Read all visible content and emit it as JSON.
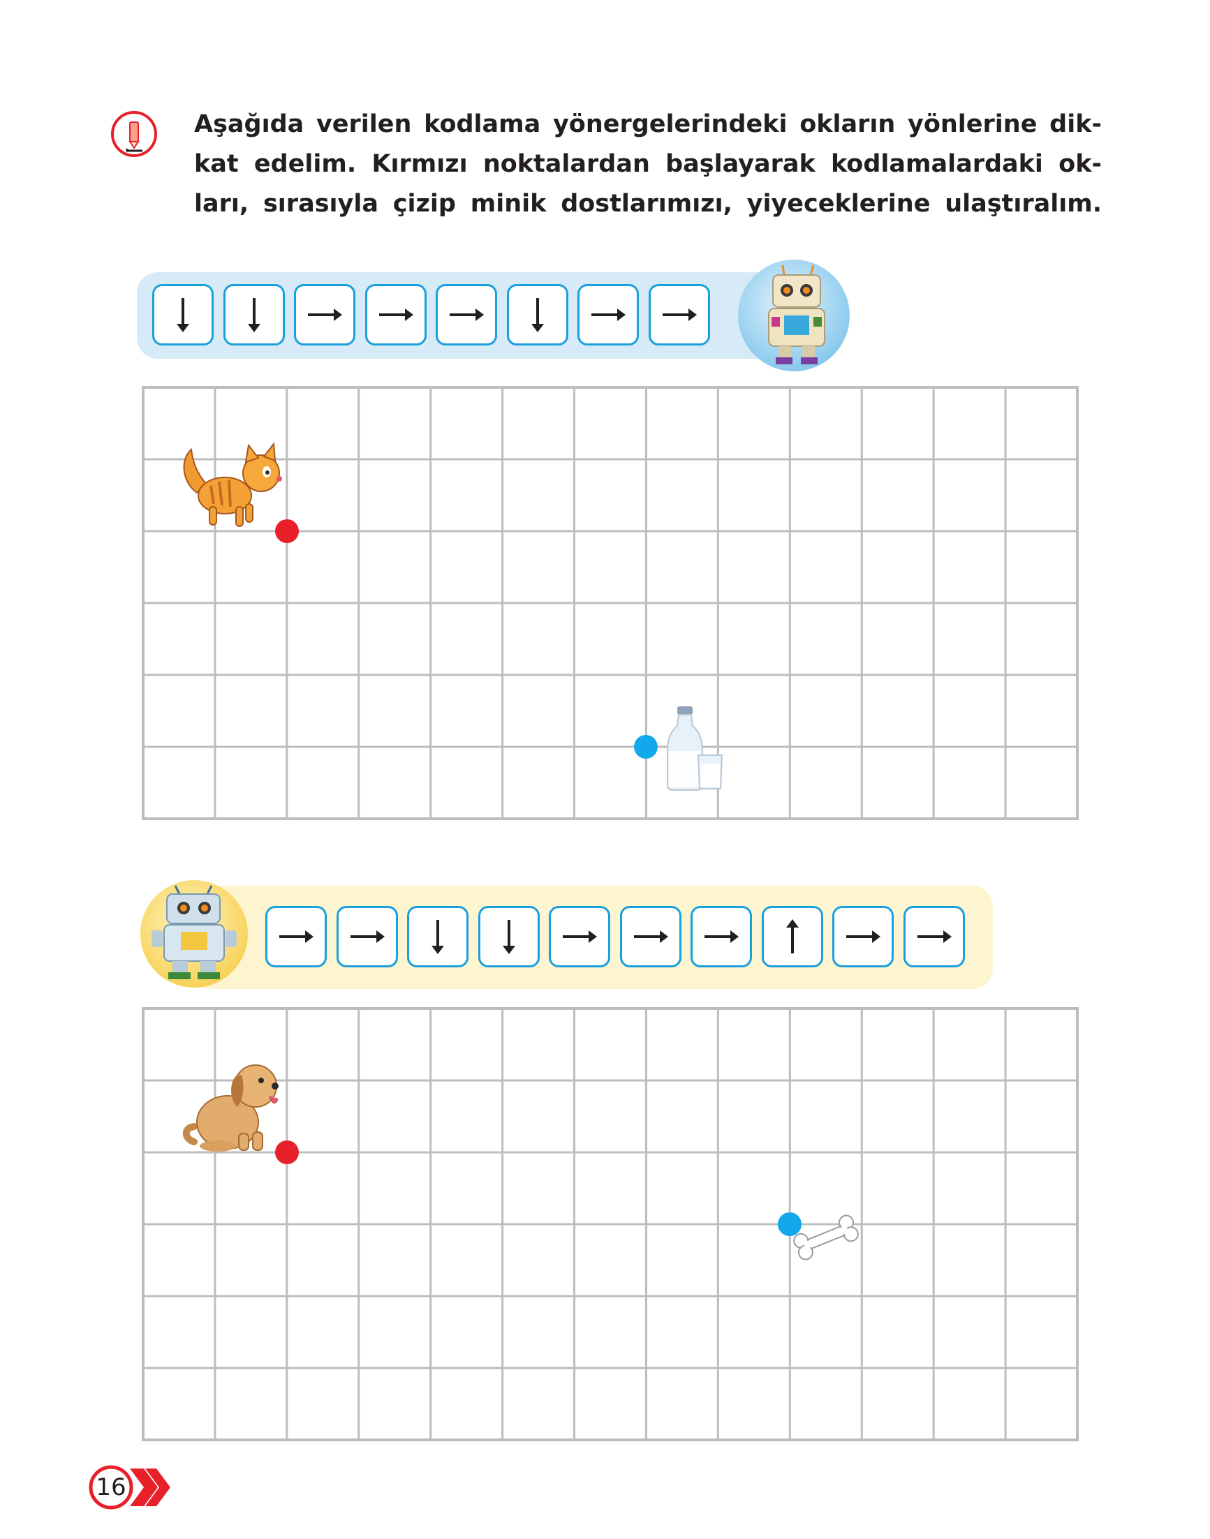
{
  "instruction": {
    "line1": "Aşağıda verilen kodlama yönergelerindeki okların yönlerine dik-",
    "line2": "kat edelim. Kırmızı noktalardan başlayarak kodlamalardaki ok-",
    "line3": "ları, sırasıyla çizip minik dostlarımızı, yiyeceklerine ulaştıralım."
  },
  "icons": {
    "info": "info-pencil-icon",
    "robot_blue_badge": "robot-icon",
    "robot_yellow_badge": "robot-icon",
    "cat": "cat-icon",
    "milk": "milk-bottle-icon",
    "dog": "dog-icon",
    "bone": "bone-icon",
    "arrow_right": "arrow-right-icon",
    "arrow_down": "arrow-down-icon",
    "arrow_up": "arrow-up-icon"
  },
  "colors": {
    "accent_blue": "#1aa0dc",
    "start_dot": "#e8202a",
    "end_dot": "#12a9ec",
    "grid_line": "#bdbdbd",
    "strip1_bg": "#d6eaf7",
    "strip2_bg": "#fdf5cf",
    "page_badge": "#e8202a"
  },
  "exercise1": {
    "code": [
      "down",
      "down",
      "right",
      "right",
      "right",
      "down",
      "right",
      "right"
    ],
    "grid": {
      "columns": 13,
      "rows": 6
    },
    "start_point": {
      "col": 2,
      "row": 2
    },
    "end_point": {
      "col": 7,
      "row": 5
    },
    "animal": "cat",
    "food": "milk"
  },
  "exercise2": {
    "code": [
      "right",
      "right",
      "down",
      "down",
      "right",
      "right",
      "right",
      "up",
      "right",
      "right"
    ],
    "grid": {
      "columns": 13,
      "rows": 6
    },
    "start_point": {
      "col": 2,
      "row": 2
    },
    "end_point": {
      "col": 9,
      "row": 3
    },
    "animal": "dog",
    "food": "bone"
  },
  "page_number": "16"
}
